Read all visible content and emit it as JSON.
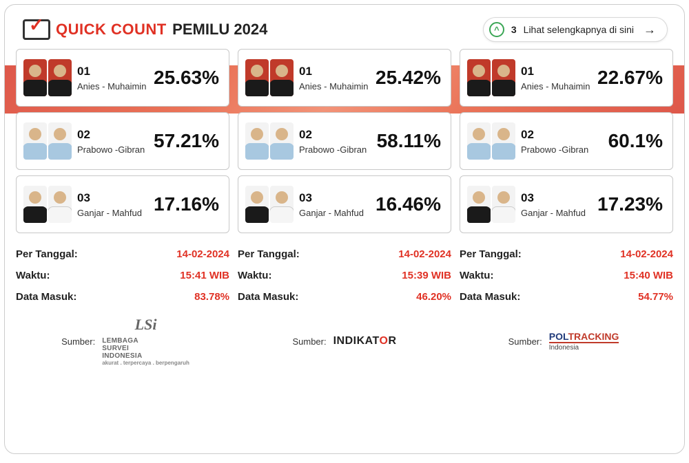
{
  "header": {
    "title_red": "QUICK COUNT",
    "title_black": "PEMILU 2024",
    "chevron_number": "3",
    "more_text": "Lihat selengkapnya di sini"
  },
  "candidates": {
    "c1": {
      "num": "01",
      "names": "Anies - Muhaimin"
    },
    "c2": {
      "num": "02",
      "names": "Prabowo -Gibran"
    },
    "c3": {
      "num": "03",
      "names": "Ganjar - Mahfud"
    }
  },
  "columns": [
    {
      "results": {
        "c1": "25.63%",
        "c2": "57.21%",
        "c3": "17.16%"
      },
      "meta": {
        "date_label": "Per Tanggal:",
        "date": "14-02-2024",
        "time_label": "Waktu:",
        "time": "15:41 WIB",
        "data_label": "Data Masuk:",
        "data": "83.78%"
      },
      "source_label": "Sumber:",
      "source_name": "LEMBAGA SURVEI INDONESIA"
    },
    {
      "results": {
        "c1": "25.42%",
        "c2": "58.11%",
        "c3": "16.46%"
      },
      "meta": {
        "date_label": "Per Tanggal:",
        "date": "14-02-2024",
        "time_label": "Waktu:",
        "time": "15:39 WIB",
        "data_label": "Data Masuk:",
        "data": "46.20%"
      },
      "source_label": "Sumber:",
      "source_name": "INDIKATOR"
    },
    {
      "results": {
        "c1": "22.67%",
        "c2": "60.1%",
        "c3": "17.23%"
      },
      "meta": {
        "date_label": "Per Tanggal:",
        "date": "14-02-2024",
        "time_label": "Waktu:",
        "time": "15:40 WIB",
        "data_label": "Data Masuk:",
        "data": "54.77%"
      },
      "source_label": "Sumber:",
      "source_name": "POLTRACKING Indonesia"
    }
  ],
  "colors": {
    "accent_red": "#e03124",
    "band_gradient_start": "#d83a2a",
    "band_gradient_mid": "#f08060",
    "card_border": "#c8c8c8",
    "text_dark": "#111"
  }
}
